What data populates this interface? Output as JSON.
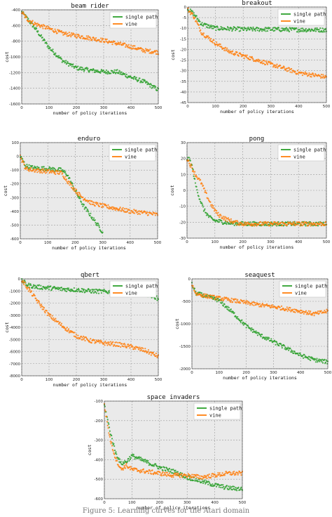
{
  "caption": "Figure 5: Learning curves for the Atari domain",
  "colors": {
    "single_path": "#2ca02c",
    "vine": "#ff7f0e",
    "panel_bg": "#eaeaea",
    "grid": "#ffffff"
  },
  "chart_data": [
    {
      "type": "scatter",
      "title": "beam rider",
      "xlabel": "number of policy iterations",
      "ylabel": "cost",
      "xlim": [
        0,
        500
      ],
      "ylim": [
        -1600,
        -400
      ],
      "xticks": [
        0,
        100,
        200,
        300,
        400,
        500
      ],
      "yticks": [
        -400,
        -600,
        -800,
        -1000,
        -1200,
        -1400,
        -1600
      ],
      "legend": "top-right",
      "series": [
        {
          "name": "single path",
          "x_max": 500,
          "points": [
            [
              0,
              -430
            ],
            [
              20,
              -510
            ],
            [
              50,
              -640
            ],
            [
              100,
              -880
            ],
            [
              150,
              -1050
            ],
            [
              200,
              -1140
            ],
            [
              250,
              -1170
            ],
            [
              300,
              -1190
            ],
            [
              350,
              -1190
            ],
            [
              400,
              -1260
            ],
            [
              450,
              -1320
            ],
            [
              500,
              -1420
            ]
          ]
        },
        {
          "name": "vine",
          "x_max": 500,
          "points": [
            [
              0,
              -430
            ],
            [
              20,
              -520
            ],
            [
              50,
              -580
            ],
            [
              100,
              -640
            ],
            [
              150,
              -700
            ],
            [
              200,
              -730
            ],
            [
              250,
              -760
            ],
            [
              300,
              -790
            ],
            [
              350,
              -830
            ],
            [
              400,
              -870
            ],
            [
              450,
              -920
            ],
            [
              500,
              -940
            ]
          ]
        }
      ]
    },
    {
      "type": "scatter",
      "title": "breakout",
      "xlabel": "number of policy iterations",
      "ylabel": "cost",
      "xlim": [
        0,
        500
      ],
      "ylim": [
        -45,
        0
      ],
      "xticks": [
        0,
        100,
        200,
        300,
        400,
        500
      ],
      "yticks": [
        0,
        -5,
        -10,
        -15,
        -20,
        -25,
        -30,
        -35,
        -40,
        -45
      ],
      "legend": "top-right",
      "series": [
        {
          "name": "single path",
          "x_max": 500,
          "points": [
            [
              0,
              -1
            ],
            [
              20,
              -3
            ],
            [
              50,
              -8
            ],
            [
              100,
              -10
            ],
            [
              200,
              -10.5
            ],
            [
              300,
              -10.5
            ],
            [
              400,
              -10.7
            ],
            [
              500,
              -10.8
            ]
          ]
        },
        {
          "name": "vine",
          "x_max": 500,
          "points": [
            [
              0,
              -1
            ],
            [
              20,
              -4
            ],
            [
              50,
              -12
            ],
            [
              100,
              -17
            ],
            [
              150,
              -21
            ],
            [
              200,
              -23
            ],
            [
              250,
              -25
            ],
            [
              300,
              -27
            ],
            [
              350,
              -29
            ],
            [
              400,
              -31
            ],
            [
              450,
              -32
            ],
            [
              500,
              -33
            ]
          ]
        }
      ]
    },
    {
      "type": "scatter",
      "title": "enduro",
      "xlabel": "number of policy iterations",
      "ylabel": "cost",
      "xlim": [
        0,
        500
      ],
      "ylim": [
        -600,
        100
      ],
      "xticks": [
        0,
        100,
        200,
        300,
        400,
        500
      ],
      "yticks": [
        100,
        0,
        -100,
        -200,
        -300,
        -400,
        -500,
        -600
      ],
      "legend": "top-right",
      "series": [
        {
          "name": "single path",
          "x_max": 300,
          "points": [
            [
              0,
              0
            ],
            [
              20,
              -70
            ],
            [
              50,
              -85
            ],
            [
              100,
              -90
            ],
            [
              150,
              -100
            ],
            [
              170,
              -130
            ],
            [
              200,
              -250
            ],
            [
              230,
              -360
            ],
            [
              260,
              -440
            ],
            [
              300,
              -550
            ]
          ]
        },
        {
          "name": "vine",
          "x_max": 500,
          "points": [
            [
              0,
              0
            ],
            [
              20,
              -90
            ],
            [
              50,
              -100
            ],
            [
              100,
              -110
            ],
            [
              150,
              -120
            ],
            [
              180,
              -200
            ],
            [
              220,
              -290
            ],
            [
              260,
              -340
            ],
            [
              300,
              -360
            ],
            [
              350,
              -380
            ],
            [
              400,
              -400
            ],
            [
              450,
              -410
            ],
            [
              500,
              -425
            ]
          ]
        }
      ]
    },
    {
      "type": "scatter",
      "title": "pong",
      "xlabel": "number of policy iterations",
      "ylabel": "cost",
      "xlim": [
        0,
        500
      ],
      "ylim": [
        -30,
        30
      ],
      "xticks": [
        0,
        100,
        200,
        300,
        400,
        500
      ],
      "yticks": [
        30,
        20,
        10,
        0,
        -10,
        -20,
        -30
      ],
      "legend": "top-right",
      "series": [
        {
          "name": "single path",
          "x_max": 500,
          "points": [
            [
              0,
              20
            ],
            [
              10,
              19
            ],
            [
              20,
              14
            ],
            [
              30,
              4
            ],
            [
              45,
              -5
            ],
            [
              60,
              -12
            ],
            [
              80,
              -17
            ],
            [
              100,
              -19
            ],
            [
              150,
              -20.5
            ],
            [
              200,
              -21
            ],
            [
              500,
              -21
            ]
          ]
        },
        {
          "name": "vine",
          "x_max": 500,
          "points": [
            [
              0,
              20
            ],
            [
              15,
              15
            ],
            [
              30,
              10
            ],
            [
              50,
              5
            ],
            [
              70,
              -3
            ],
            [
              90,
              -10
            ],
            [
              110,
              -15
            ],
            [
              140,
              -18
            ],
            [
              170,
              -20
            ],
            [
              200,
              -21
            ],
            [
              500,
              -21
            ]
          ]
        }
      ]
    },
    {
      "type": "scatter",
      "title": "qbert",
      "xlabel": "number of policy iterations",
      "ylabel": "cost",
      "xlim": [
        0,
        500
      ],
      "ylim": [
        -8000,
        0
      ],
      "xticks": [
        0,
        100,
        200,
        300,
        400,
        500
      ],
      "yticks": [
        0,
        -1000,
        -2000,
        -3000,
        -4000,
        -5000,
        -6000,
        -7000,
        -8000
      ],
      "legend": "top-right",
      "series": [
        {
          "name": "single path",
          "x_max": 500,
          "points": [
            [
              0,
              -100
            ],
            [
              20,
              -500
            ],
            [
              50,
              -650
            ],
            [
              100,
              -750
            ],
            [
              150,
              -850
            ],
            [
              200,
              -900
            ],
            [
              250,
              -1000
            ],
            [
              300,
              -1050
            ],
            [
              350,
              -1100
            ],
            [
              400,
              -1150
            ],
            [
              450,
              -1200
            ],
            [
              490,
              -1500
            ],
            [
              500,
              -1700
            ]
          ]
        },
        {
          "name": "vine",
          "x_max": 500,
          "points": [
            [
              0,
              -100
            ],
            [
              30,
              -1000
            ],
            [
              70,
              -2200
            ],
            [
              100,
              -3000
            ],
            [
              150,
              -3900
            ],
            [
              200,
              -4700
            ],
            [
              250,
              -5100
            ],
            [
              300,
              -5300
            ],
            [
              350,
              -5400
            ],
            [
              400,
              -5600
            ],
            [
              450,
              -5900
            ],
            [
              500,
              -6400
            ]
          ]
        }
      ]
    },
    {
      "type": "scatter",
      "title": "seaquest",
      "xlabel": "number of policy iterations",
      "ylabel": "cost",
      "xlim": [
        0,
        500
      ],
      "ylim": [
        -2000,
        0
      ],
      "xticks": [
        0,
        100,
        200,
        300,
        400,
        500
      ],
      "yticks": [
        0,
        -500,
        -1000,
        -1500,
        -2000
      ],
      "legend": "top-right",
      "series": [
        {
          "name": "single path",
          "x_max": 500,
          "points": [
            [
              0,
              -120
            ],
            [
              15,
              -320
            ],
            [
              50,
              -380
            ],
            [
              100,
              -480
            ],
            [
              150,
              -750
            ],
            [
              200,
              -1050
            ],
            [
              250,
              -1250
            ],
            [
              300,
              -1400
            ],
            [
              350,
              -1550
            ],
            [
              400,
              -1700
            ],
            [
              450,
              -1800
            ],
            [
              500,
              -1850
            ]
          ]
        },
        {
          "name": "vine",
          "x_max": 500,
          "points": [
            [
              0,
              -120
            ],
            [
              15,
              -330
            ],
            [
              50,
              -380
            ],
            [
              100,
              -430
            ],
            [
              150,
              -480
            ],
            [
              200,
              -530
            ],
            [
              250,
              -580
            ],
            [
              300,
              -620
            ],
            [
              350,
              -670
            ],
            [
              400,
              -720
            ],
            [
              450,
              -780
            ],
            [
              500,
              -720
            ]
          ]
        }
      ]
    },
    {
      "type": "scatter",
      "title": "space invaders",
      "xlabel": "number of policy iterations",
      "ylabel": "cost",
      "xlim": [
        0,
        500
      ],
      "ylim": [
        -600,
        -100
      ],
      "xticks": [
        0,
        100,
        200,
        300,
        400,
        500
      ],
      "yticks": [
        -100,
        -200,
        -300,
        -400,
        -500,
        -600
      ],
      "legend": "top-right",
      "series": [
        {
          "name": "single path",
          "x_max": 500,
          "points": [
            [
              0,
              -120
            ],
            [
              20,
              -250
            ],
            [
              40,
              -360
            ],
            [
              60,
              -420
            ],
            [
              80,
              -410
            ],
            [
              100,
              -380
            ],
            [
              150,
              -410
            ],
            [
              200,
              -440
            ],
            [
              250,
              -460
            ],
            [
              300,
              -490
            ],
            [
              350,
              -510
            ],
            [
              400,
              -530
            ],
            [
              450,
              -545
            ],
            [
              500,
              -550
            ]
          ]
        },
        {
          "name": "vine",
          "x_max": 500,
          "points": [
            [
              0,
              -120
            ],
            [
              20,
              -290
            ],
            [
              40,
              -390
            ],
            [
              60,
              -450
            ],
            [
              80,
              -430
            ],
            [
              100,
              -450
            ],
            [
              150,
              -460
            ],
            [
              200,
              -470
            ],
            [
              250,
              -480
            ],
            [
              300,
              -480
            ],
            [
              350,
              -490
            ],
            [
              400,
              -480
            ],
            [
              450,
              -470
            ],
            [
              500,
              -470
            ]
          ]
        }
      ]
    }
  ]
}
